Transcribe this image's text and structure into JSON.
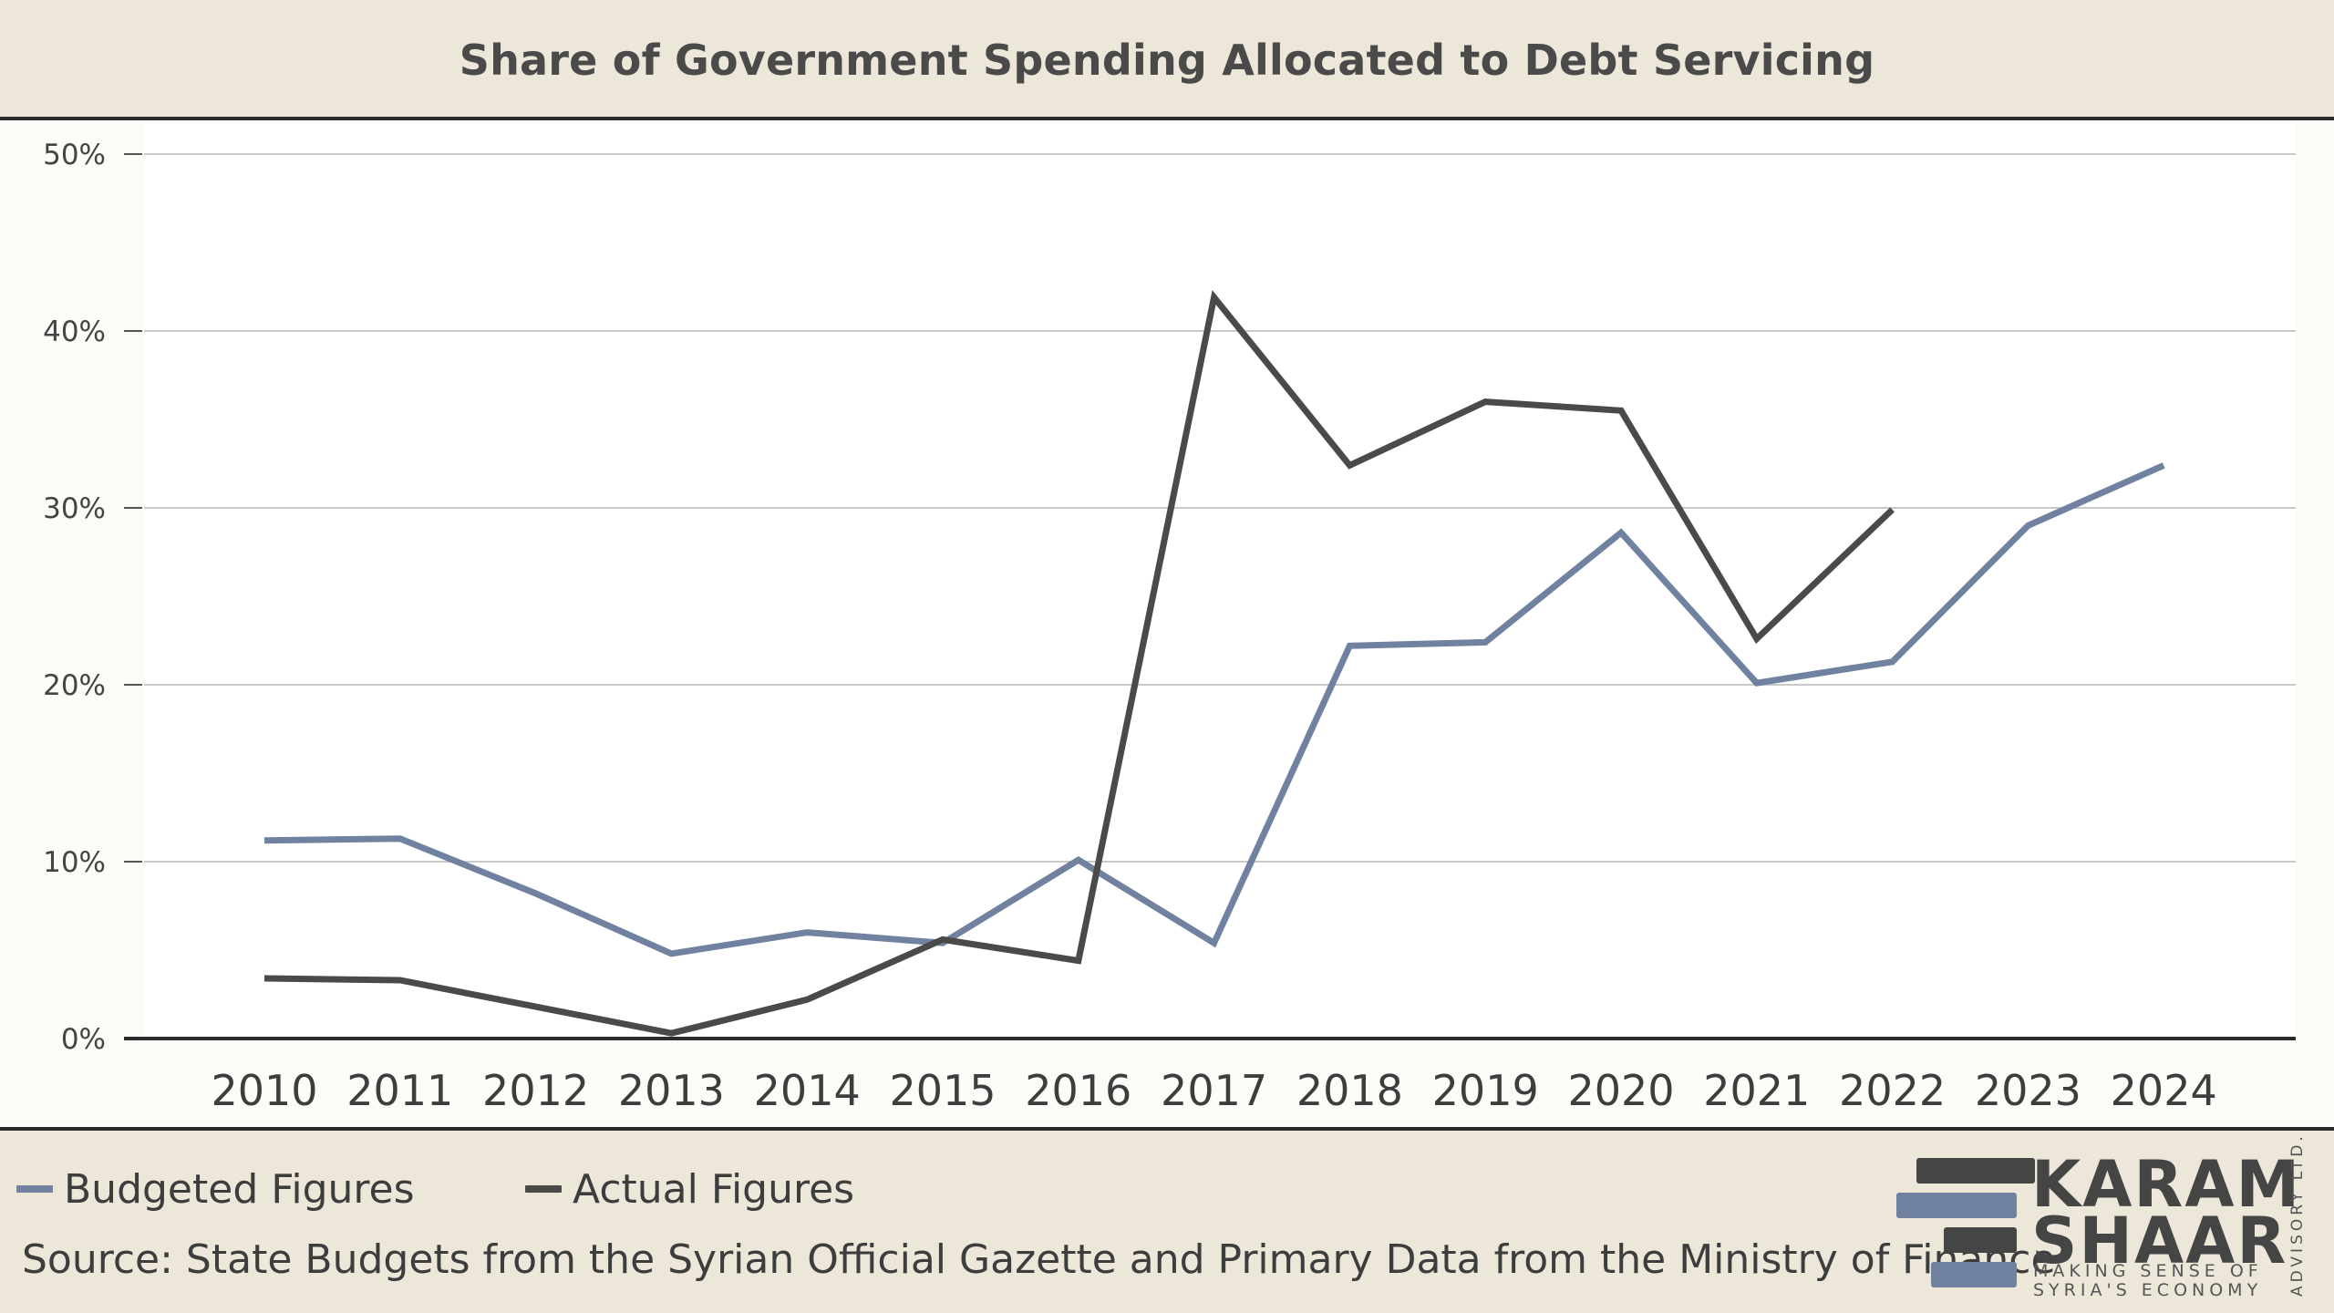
{
  "chart_data": {
    "type": "line",
    "title": "Share of Government Spending Allocated to Debt Servicing",
    "xlabel": "",
    "ylabel": "",
    "categories": [
      "2010",
      "2011",
      "2012",
      "2013",
      "2014",
      "2015",
      "2016",
      "2017",
      "2018",
      "2019",
      "2020",
      "2021",
      "2022",
      "2023",
      "2024"
    ],
    "ylim": [
      0,
      50
    ],
    "yticks": [
      "0%",
      "10%",
      "20%",
      "30%",
      "40%",
      "50%"
    ],
    "grid": true,
    "legend_position": "bottom-left",
    "series": [
      {
        "name": "Budgeted Figures",
        "color": "#7082a0",
        "values": [
          11.2,
          11.3,
          8.2,
          4.8,
          6.0,
          5.4,
          10.1,
          5.4,
          22.2,
          22.4,
          28.6,
          20.1,
          21.3,
          29.0,
          32.4
        ]
      },
      {
        "name": "Actual Figures",
        "color": "#4a4a4a",
        "values": [
          3.4,
          3.3,
          1.8,
          0.3,
          2.2,
          5.6,
          4.4,
          41.9,
          32.4,
          36.0,
          35.5,
          22.6,
          29.9,
          null,
          null
        ]
      }
    ]
  },
  "footer": {
    "source": "Source: State Budgets from the Syrian Official Gazette and Primary Data from the Ministry of Finance"
  },
  "logo": {
    "line1": "KARAM",
    "line2": "SHAAR",
    "tagline1": "MAKING SENSE OF",
    "tagline2": "SYRIA'S ECONOMY",
    "vertical": "ADVISORY LTD."
  }
}
